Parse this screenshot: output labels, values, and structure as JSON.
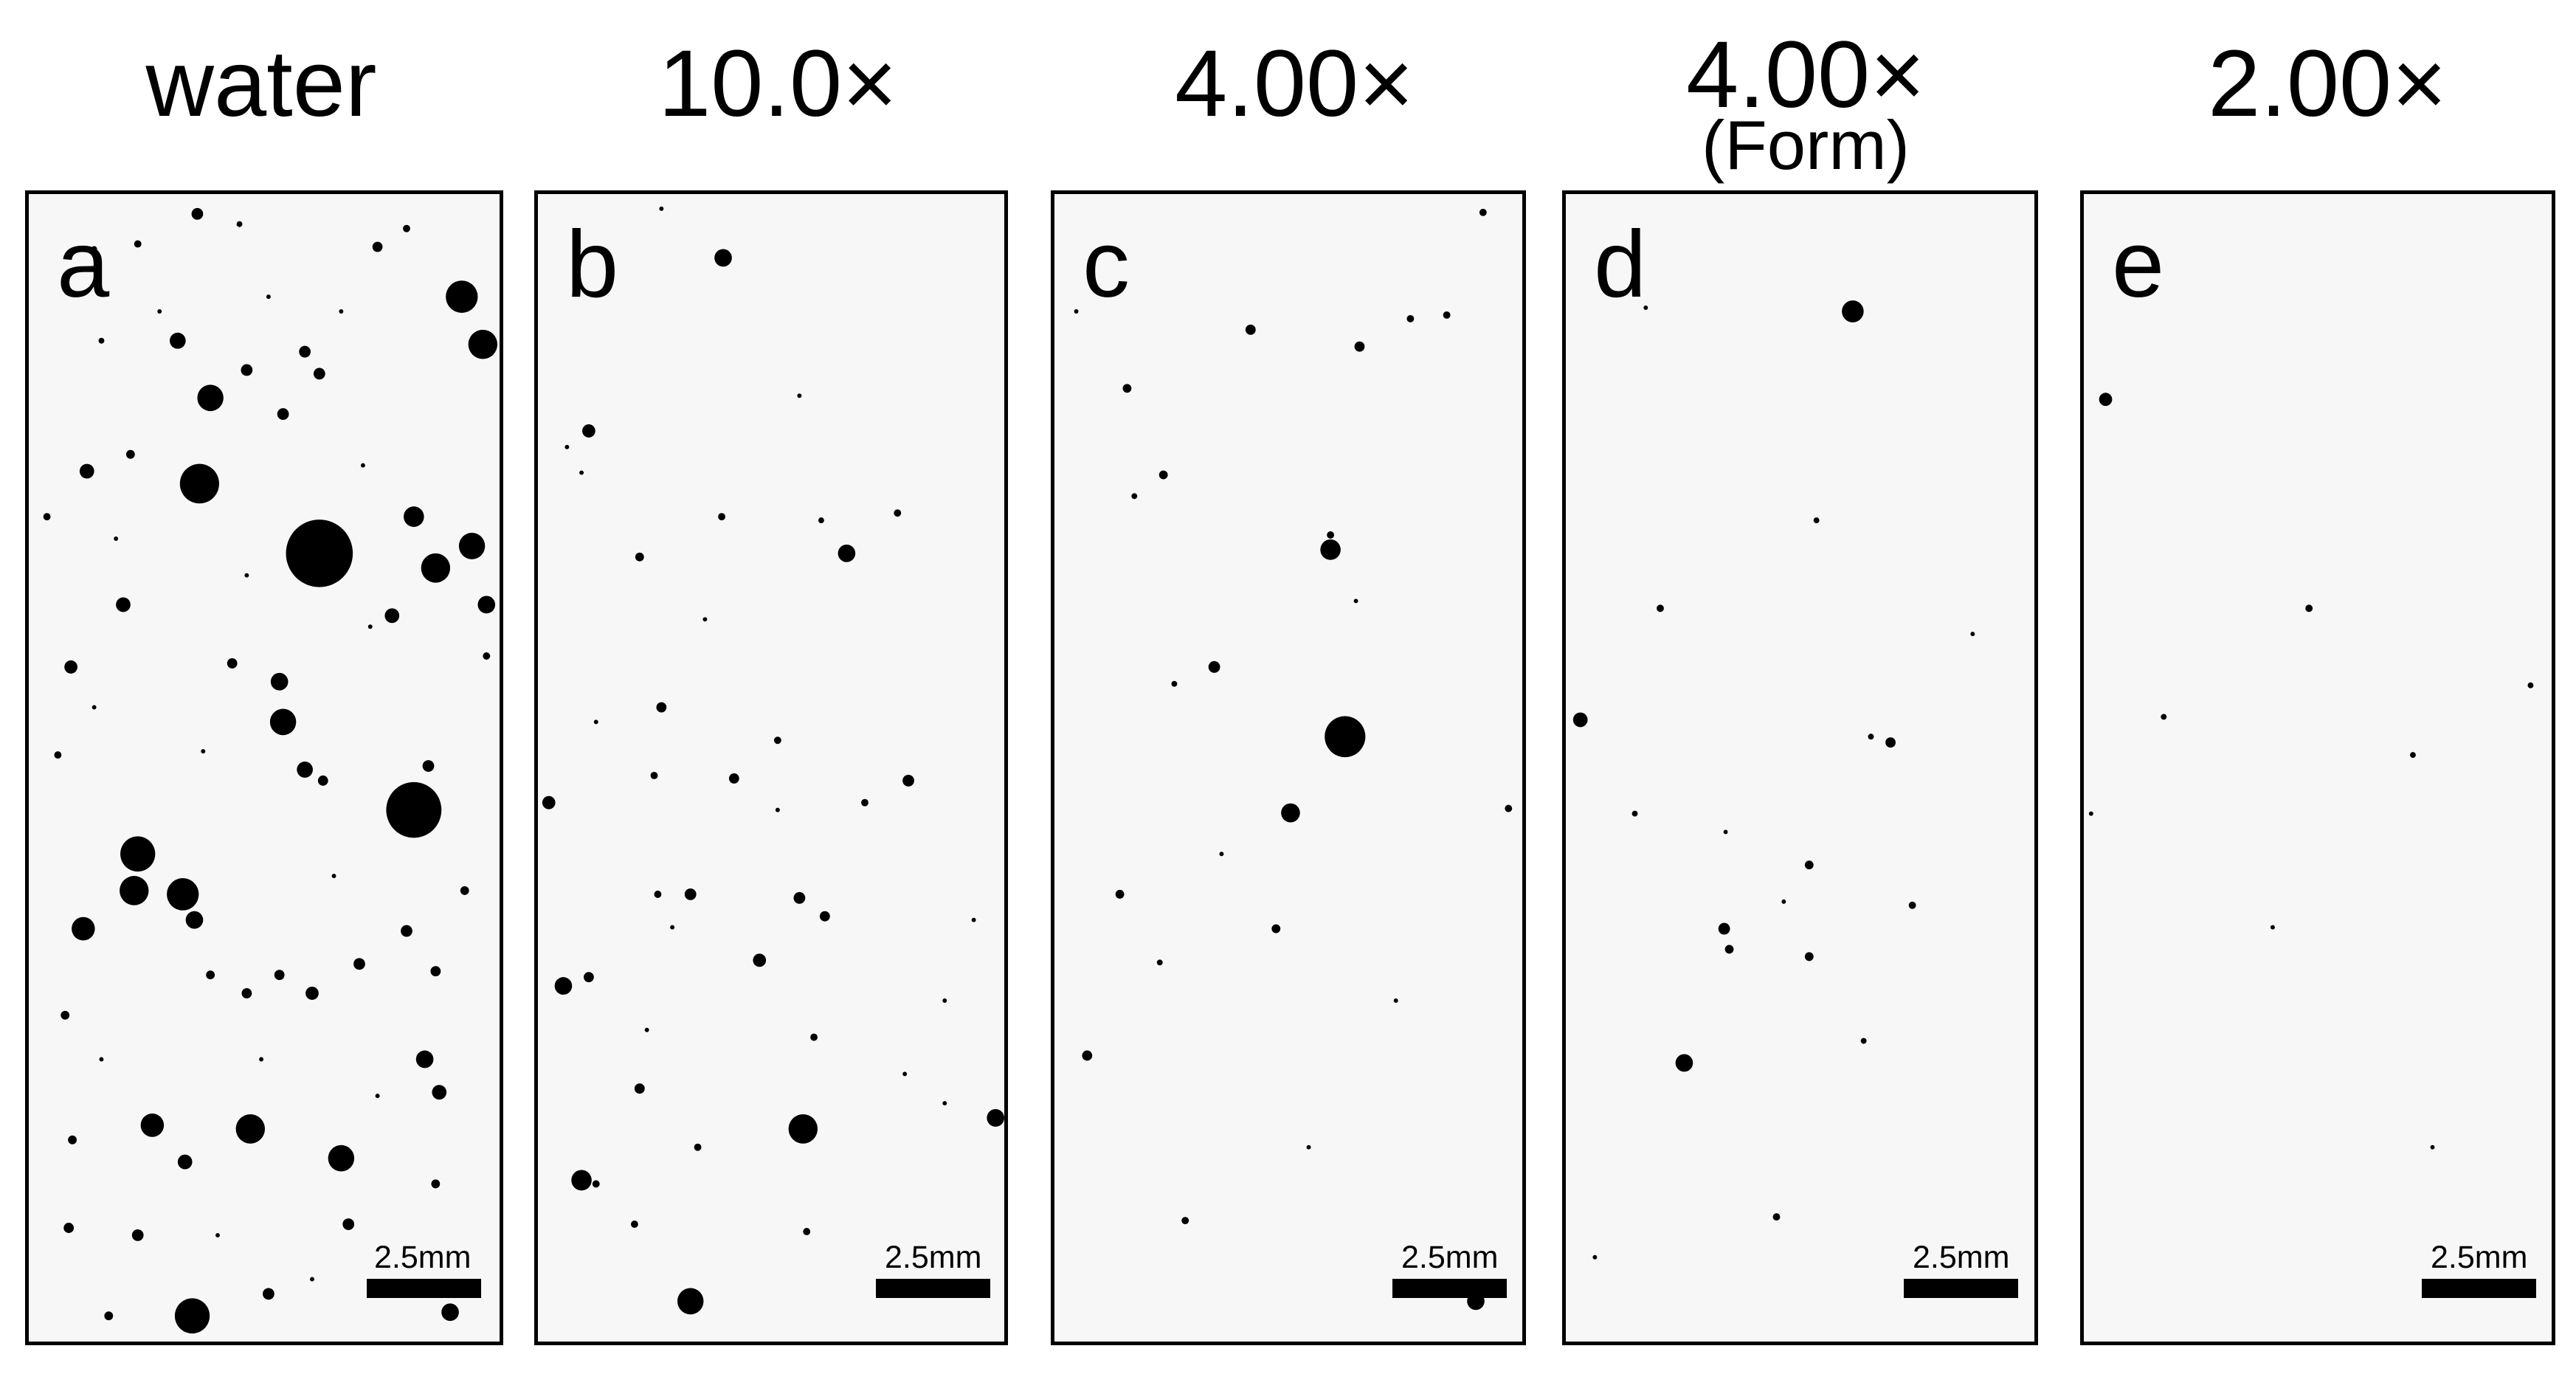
{
  "figure": {
    "columns": [
      {
        "title": "water",
        "subtitle": "",
        "label": "a",
        "scale": "2.5mm"
      },
      {
        "title": "10.0×",
        "subtitle": "",
        "label": "b",
        "scale": "2.5mm"
      },
      {
        "title": "4.00×",
        "subtitle": "",
        "label": "c",
        "scale": "2.5mm"
      },
      {
        "title": "4.00×",
        "subtitle": "(Form)",
        "label": "d",
        "scale": "2.5mm"
      },
      {
        "title": "2.00×",
        "subtitle": "",
        "label": "e",
        "scale": "2.5mm"
      }
    ]
  },
  "colors": {
    "background": "#f7f7f7",
    "droplets": "#000000",
    "frame": "#000000"
  }
}
